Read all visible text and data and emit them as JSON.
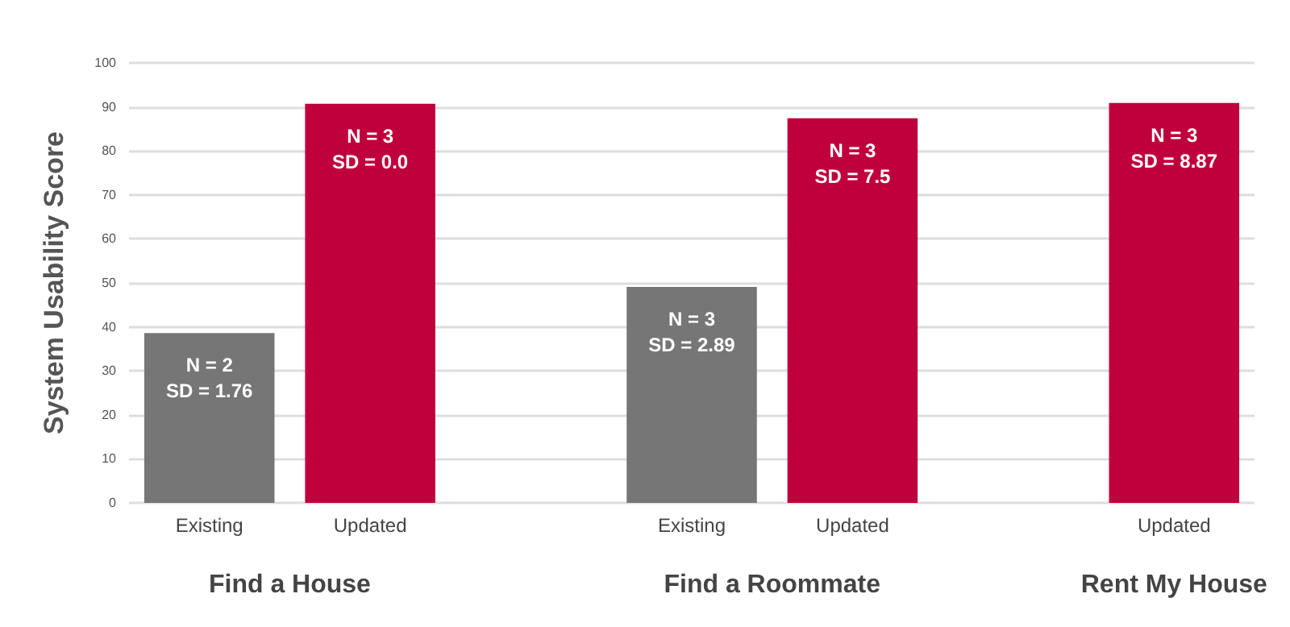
{
  "chart_data": {
    "type": "bar",
    "ylabel": "System Usability Score",
    "categories": [
      "Existing",
      "Updated",
      null,
      "Existing",
      "Updated",
      null,
      "Updated"
    ],
    "values": [
      38.6,
      90.7,
      null,
      49.1,
      87.4,
      null,
      90.9
    ],
    "colors": [
      "#767676",
      "#c0003c",
      null,
      "#767676",
      "#c0003c",
      null,
      "#c0003c"
    ],
    "value_labels": [
      "N = 2\nSD = 1.76",
      "N = 3\nSD = 0.0",
      null,
      "N = 3\nSD = 2.89",
      "N = 3\nSD = 7.5",
      null,
      "N = 3\nSD = 8.87"
    ],
    "annotations": [
      "Find a House",
      "Find a Roommate",
      "Rent My House"
    ],
    "ylim": [
      0,
      100
    ],
    "yticks": [
      0,
      10,
      20,
      30,
      40,
      50,
      60,
      70,
      80,
      90,
      100
    ],
    "grid": "y"
  }
}
